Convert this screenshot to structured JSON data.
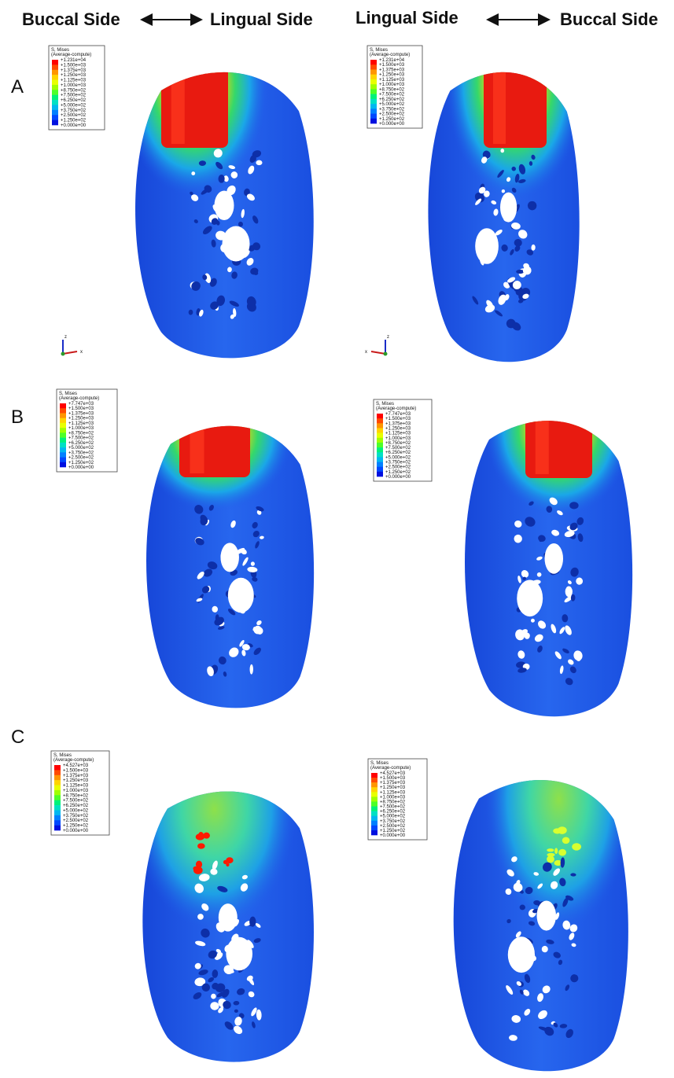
{
  "header": {
    "left": {
      "from": "Buccal Side",
      "to": "Lingual Side"
    },
    "right": {
      "from": "Lingual Side",
      "to": "Buccal Side"
    }
  },
  "rows": [
    {
      "label": "A",
      "panels": [
        {
          "legend": {
            "title": "S, Mises",
            "subtitle": "(Average-compute)",
            "values": [
              "+1.231e+04",
              "+1.500e+03",
              "+1.375e+03",
              "+1.250e+03",
              "+1.125e+03",
              "+1.000e+03",
              "+8.750e+02",
              "+7.500e+02",
              "+6.250e+02",
              "+5.000e+02",
              "+3.750e+02",
              "+2.500e+02",
              "+1.250e+02",
              "+0.000e+00"
            ]
          },
          "axes": [
            "z",
            "x"
          ]
        },
        {
          "legend": {
            "title": "S, Mises",
            "subtitle": "(Average-compute)",
            "values": [
              "+1.231e+04",
              "+1.500e+03",
              "+1.375e+03",
              "+1.250e+03",
              "+1.125e+03",
              "+1.000e+03",
              "+8.750e+02",
              "+7.500e+02",
              "+6.250e+02",
              "+5.000e+02",
              "+3.750e+02",
              "+2.500e+02",
              "+1.250e+02",
              "+0.000e+00"
            ]
          },
          "axes": [
            "z",
            "x"
          ]
        }
      ]
    },
    {
      "label": "B",
      "panels": [
        {
          "legend": {
            "title": "S, Mises",
            "subtitle": "(Average-compute)",
            "values": [
              "+7.747e+03",
              "+1.500e+03",
              "+1.375e+03",
              "+1.250e+03",
              "+1.125e+03",
              "+1.000e+03",
              "+8.750e+02",
              "+7.500e+02",
              "+6.250e+02",
              "+5.000e+02",
              "+3.750e+02",
              "+2.500e+02",
              "+1.250e+02",
              "+0.000e+00"
            ]
          }
        },
        {
          "legend": {
            "title": "S, Mises",
            "subtitle": "(Average-compute)",
            "values": [
              "+7.747e+03",
              "+1.500e+03",
              "+1.375e+03",
              "+1.250e+03",
              "+1.125e+03",
              "+1.000e+03",
              "+8.750e+02",
              "+7.500e+02",
              "+6.250e+02",
              "+5.000e+02",
              "+3.750e+02",
              "+2.500e+02",
              "+1.250e+02",
              "+0.000e+00"
            ]
          }
        }
      ]
    },
    {
      "label": "C",
      "panels": [
        {
          "legend": {
            "title": "S, Mises",
            "subtitle": "(Average-compute)",
            "values": [
              "+4.527e+03",
              "+1.500e+03",
              "+1.375e+03",
              "+1.250e+03",
              "+1.125e+03",
              "+1.000e+03",
              "+8.750e+02",
              "+7.500e+02",
              "+6.250e+02",
              "+5.000e+02",
              "+3.750e+02",
              "+2.500e+02",
              "+1.250e+02",
              "+0.000e+00"
            ]
          }
        },
        {
          "legend": {
            "title": "S, Mises",
            "subtitle": "(Average-compute)",
            "values": [
              "+4.527e+03",
              "+1.500e+03",
              "+1.375e+03",
              "+1.250e+03",
              "+1.125e+03",
              "+1.000e+03",
              "+8.750e+02",
              "+7.500e+02",
              "+6.250e+02",
              "+5.000e+02",
              "+3.750e+02",
              "+2.500e+02",
              "+1.250e+02",
              "+0.000e+00"
            ]
          }
        }
      ]
    }
  ]
}
